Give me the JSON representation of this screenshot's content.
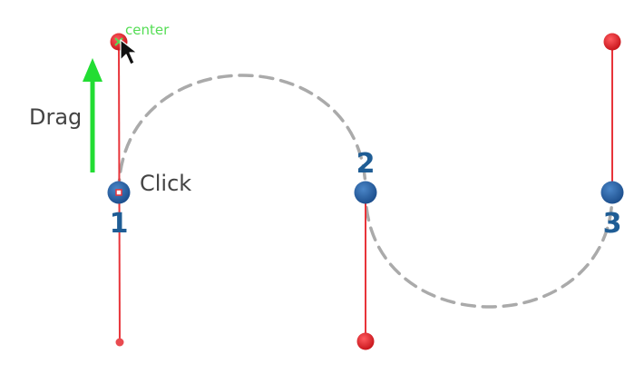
{
  "labels": {
    "drag": "Drag",
    "click": "Click",
    "center": "center"
  },
  "anchors": [
    {
      "number": "1"
    },
    {
      "number": "2"
    },
    {
      "number": "3"
    }
  ],
  "colors": {
    "anchor_fill": "#2a65a8",
    "anchor_number": "#1f5d95",
    "handle_line": "#e8343a",
    "handle_fill": "#e52a2f",
    "curve": "#aaaaaa",
    "arrow": "#22dd33",
    "center_label": "#55dd55",
    "instruction_text": "#444444"
  },
  "icons": {
    "drag_arrow": "arrow-up-icon",
    "cursor": "mouse-pointer-icon",
    "center_marker": "x-mark-icon"
  }
}
